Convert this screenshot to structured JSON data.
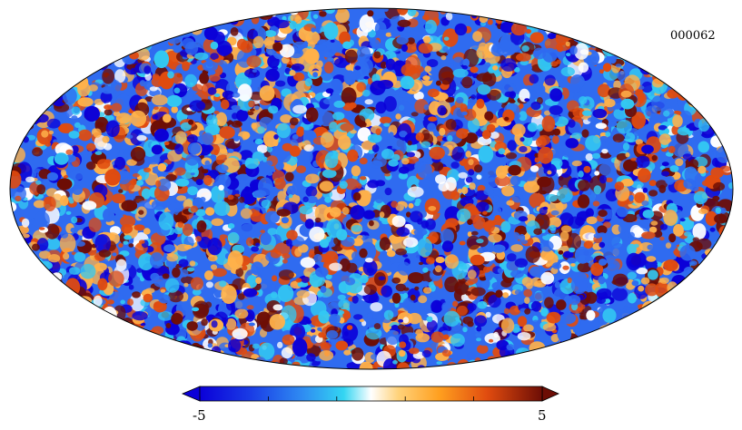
{
  "map": {
    "id_label": "000062",
    "projection": "mollweide",
    "colormap": [
      "#0b00d8",
      "#2f6bf0",
      "#33c8f2",
      "#ffffff",
      "#ffb14a",
      "#e04b0f",
      "#6d0d05"
    ]
  },
  "colorbar": {
    "min_label": "-5",
    "max_label": "5",
    "min_value": -5,
    "max_value": 5
  }
}
